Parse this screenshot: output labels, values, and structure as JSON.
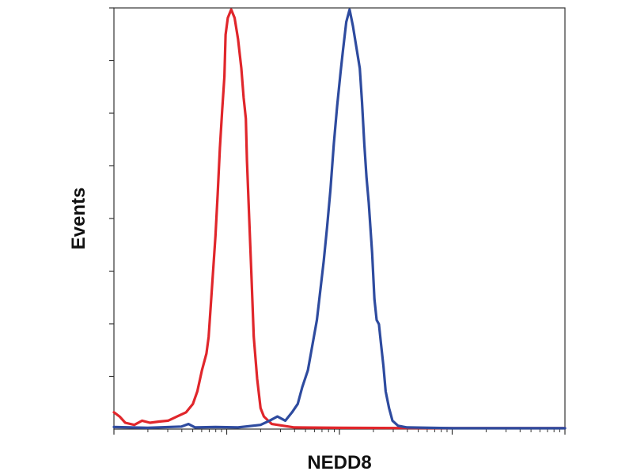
{
  "chart_data": {
    "type": "line",
    "title": "",
    "xlabel": "NEDD8",
    "ylabel": "Events",
    "x_scale": "log",
    "x_decades": 4,
    "y_major_ticks": 8,
    "grid": false,
    "legend": "none",
    "y_range": [
      0,
      1
    ],
    "series": [
      {
        "color": "#e0262b",
        "points": [
          [
            0,
            0.04
          ],
          [
            0.05,
            0.03
          ],
          [
            0.1,
            0.015
          ],
          [
            0.18,
            0.01
          ],
          [
            0.25,
            0.02
          ],
          [
            0.32,
            0.015
          ],
          [
            0.4,
            0.018
          ],
          [
            0.48,
            0.02
          ],
          [
            0.56,
            0.03
          ],
          [
            0.64,
            0.04
          ],
          [
            0.7,
            0.06
          ],
          [
            0.74,
            0.09
          ],
          [
            0.78,
            0.14
          ],
          [
            0.82,
            0.18
          ],
          [
            0.84,
            0.22
          ],
          [
            0.87,
            0.34
          ],
          [
            0.9,
            0.46
          ],
          [
            0.92,
            0.56
          ],
          [
            0.94,
            0.67
          ],
          [
            0.96,
            0.76
          ],
          [
            0.98,
            0.84
          ],
          [
            0.99,
            0.94
          ],
          [
            1.01,
            0.98
          ],
          [
            1.04,
            1.0
          ],
          [
            1.07,
            0.98
          ],
          [
            1.1,
            0.93
          ],
          [
            1.13,
            0.86
          ],
          [
            1.15,
            0.79
          ],
          [
            1.17,
            0.74
          ],
          [
            1.18,
            0.64
          ],
          [
            1.2,
            0.5
          ],
          [
            1.22,
            0.36
          ],
          [
            1.24,
            0.22
          ],
          [
            1.27,
            0.12
          ],
          [
            1.3,
            0.05
          ],
          [
            1.33,
            0.03
          ],
          [
            1.4,
            0.012
          ],
          [
            1.6,
            0.004
          ],
          [
            2.0,
            0.003
          ],
          [
            3.0,
            0.002
          ],
          [
            4.0,
            0.002
          ]
        ]
      },
      {
        "color": "#2e4b9f",
        "points": [
          [
            0,
            0.005
          ],
          [
            0.3,
            0.003
          ],
          [
            0.6,
            0.006
          ],
          [
            0.66,
            0.012
          ],
          [
            0.72,
            0.004
          ],
          [
            0.9,
            0.005
          ],
          [
            1.1,
            0.004
          ],
          [
            1.3,
            0.01
          ],
          [
            1.38,
            0.02
          ],
          [
            1.45,
            0.03
          ],
          [
            1.52,
            0.02
          ],
          [
            1.58,
            0.04
          ],
          [
            1.63,
            0.06
          ],
          [
            1.67,
            0.1
          ],
          [
            1.72,
            0.14
          ],
          [
            1.76,
            0.2
          ],
          [
            1.8,
            0.26
          ],
          [
            1.83,
            0.33
          ],
          [
            1.86,
            0.4
          ],
          [
            1.89,
            0.48
          ],
          [
            1.92,
            0.57
          ],
          [
            1.95,
            0.68
          ],
          [
            1.98,
            0.77
          ],
          [
            2.01,
            0.85
          ],
          [
            2.03,
            0.9
          ],
          [
            2.06,
            0.97
          ],
          [
            2.09,
            1.0
          ],
          [
            2.12,
            0.96
          ],
          [
            2.15,
            0.91
          ],
          [
            2.18,
            0.86
          ],
          [
            2.2,
            0.78
          ],
          [
            2.22,
            0.68
          ],
          [
            2.24,
            0.6
          ],
          [
            2.26,
            0.54
          ],
          [
            2.29,
            0.42
          ],
          [
            2.31,
            0.31
          ],
          [
            2.33,
            0.26
          ],
          [
            2.35,
            0.25
          ],
          [
            2.37,
            0.2
          ],
          [
            2.39,
            0.15
          ],
          [
            2.41,
            0.09
          ],
          [
            2.44,
            0.05
          ],
          [
            2.47,
            0.02
          ],
          [
            2.52,
            0.008
          ],
          [
            2.6,
            0.004
          ],
          [
            3.0,
            0.002
          ],
          [
            4.0,
            0.002
          ]
        ]
      }
    ]
  }
}
